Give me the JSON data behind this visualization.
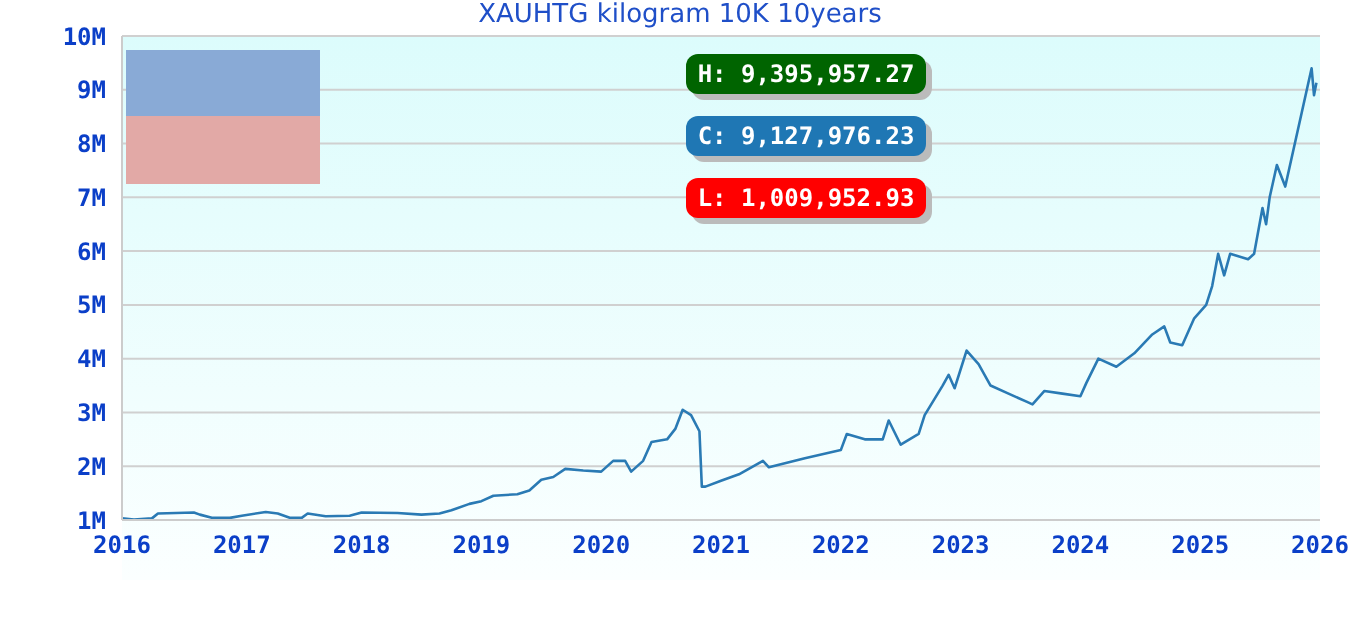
{
  "chart_data": {
    "type": "line",
    "title": "XAUHTG kilogram 10K 10years",
    "annotations": [
      "H: 9,395,957.27",
      "C: 9,127,976.23",
      "L: 1,009,952.93"
    ],
    "x": [
      2016.0,
      2016.1,
      2016.25,
      2016.3,
      2016.6,
      2016.65,
      2016.75,
      2016.9,
      2017.0,
      2017.2,
      2017.3,
      2017.4,
      2017.5,
      2017.55,
      2017.7,
      2017.9,
      2018.0,
      2018.3,
      2018.5,
      2018.65,
      2018.75,
      2018.9,
      2019.0,
      2019.1,
      2019.3,
      2019.4,
      2019.5,
      2019.6,
      2019.7,
      2019.85,
      2020.0,
      2020.1,
      2020.2,
      2020.25,
      2020.35,
      2020.42,
      2020.55,
      2020.62,
      2020.68,
      2020.75,
      2020.82,
      2020.84,
      2020.87,
      2021.0,
      2021.15,
      2021.35,
      2021.4,
      2021.7,
      2022.0,
      2022.05,
      2022.2,
      2022.35,
      2022.4,
      2022.5,
      2022.65,
      2022.7,
      2022.85,
      2022.9,
      2022.95,
      2023.05,
      2023.15,
      2023.25,
      2023.4,
      2023.55,
      2023.6,
      2023.7,
      2023.85,
      2024.0,
      2024.05,
      2024.15,
      2024.3,
      2024.45,
      2024.6,
      2024.7,
      2024.75,
      2024.85,
      2024.95,
      2025.05,
      2025.1,
      2025.15,
      2025.2,
      2025.25,
      2025.4,
      2025.45,
      2025.52,
      2025.55,
      2025.58,
      2025.64,
      2025.71,
      2025.85,
      2025.93,
      2025.95,
      2025.97
    ],
    "series": [
      {
        "color": "#2a7ab4",
        "values": [
          1030000,
          1010000,
          1030000,
          1120000,
          1140000,
          1100000,
          1040000,
          1040000,
          1080000,
          1150000,
          1120000,
          1040000,
          1040000,
          1120000,
          1070000,
          1080000,
          1140000,
          1130000,
          1100000,
          1120000,
          1180000,
          1300000,
          1350000,
          1450000,
          1480000,
          1550000,
          1750000,
          1800000,
          1950000,
          1920000,
          1900000,
          2100000,
          2100000,
          1900000,
          2100000,
          2450000,
          2500000,
          2700000,
          3050000,
          2950000,
          2650000,
          1620000,
          1620000,
          1730000,
          1850000,
          2100000,
          1980000,
          2150000,
          2300000,
          2600000,
          2500000,
          2500000,
          2850000,
          2400000,
          2600000,
          2950000,
          3500000,
          3700000,
          3450000,
          4150000,
          3900000,
          3500000,
          3350000,
          3200000,
          3150000,
          3400000,
          3350000,
          3300000,
          3550000,
          4000000,
          3850000,
          4100000,
          4450000,
          4600000,
          4300000,
          4250000,
          4750000,
          5000000,
          5350000,
          5950000,
          5550000,
          5950000,
          5850000,
          5950000,
          6800000,
          6500000,
          7000000,
          7600000,
          7200000,
          8600000,
          9400000,
          8900000,
          9130000
        ]
      }
    ],
    "xlim": [
      2016,
      2026
    ],
    "xticks": [
      2016,
      2017,
      2018,
      2019,
      2020,
      2021,
      2022,
      2023,
      2024,
      2025,
      2026
    ],
    "ylim": [
      1000000,
      10000000
    ],
    "yticks": [
      {
        "value": 1000000,
        "label": "1M"
      },
      {
        "value": 2000000,
        "label": "2M"
      },
      {
        "value": 3000000,
        "label": "3M"
      },
      {
        "value": 4000000,
        "label": "4M"
      },
      {
        "value": 5000000,
        "label": "5M"
      },
      {
        "value": 6000000,
        "label": "6M"
      },
      {
        "value": 7000000,
        "label": "7M"
      },
      {
        "value": 8000000,
        "label": "8M"
      },
      {
        "value": 9000000,
        "label": "9M"
      },
      {
        "value": 10000000,
        "label": "10M"
      }
    ],
    "grid": "y",
    "marker": "none",
    "line_style": "solid",
    "legend": false
  }
}
